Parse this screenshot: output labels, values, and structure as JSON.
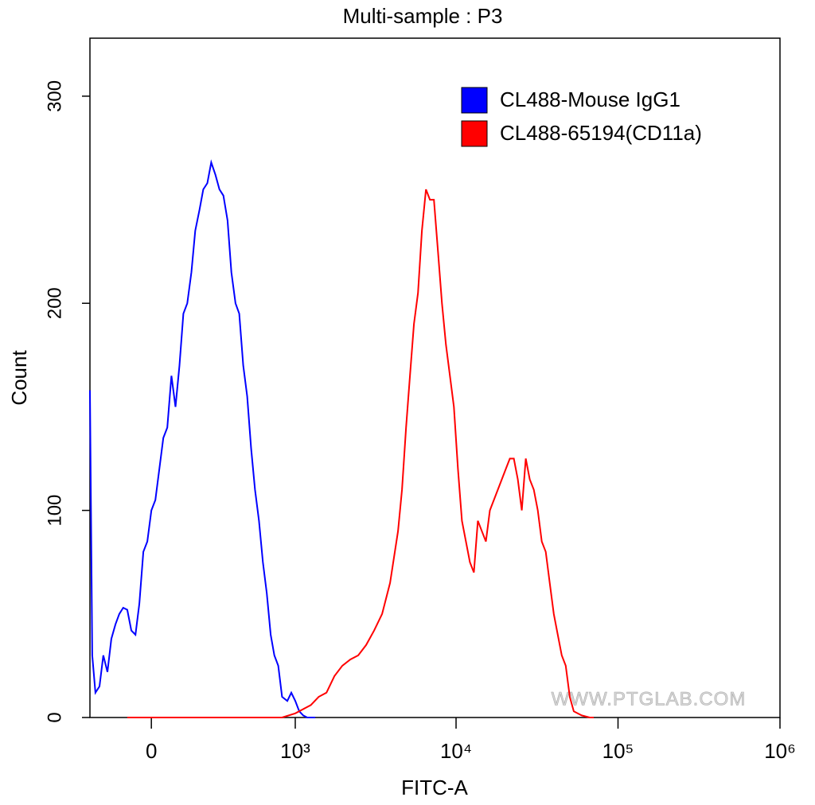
{
  "chart_data": {
    "type": "line",
    "title": "Multi-sample : P3",
    "x_label": "FITC-A",
    "y_label": "Count",
    "watermark": "WWW.PTGLAB.COM",
    "xscale": "biexponential",
    "xlim": [
      -260,
      1000000
    ],
    "ylim": [
      0,
      328
    ],
    "xticks": [
      0,
      {
        "value": 1000,
        "label": "10³"
      },
      {
        "value": 10000,
        "label": "10⁴"
      },
      {
        "value": 100000,
        "label": "10⁵"
      },
      {
        "value": 1000000,
        "label": "10⁶"
      }
    ],
    "yticks": [
      0,
      100,
      200,
      300
    ],
    "legend": "top-right",
    "series": [
      {
        "name": "CL488-Mouse IgG1",
        "color": "#0000ff",
        "x": [
          -260,
          -248,
          -232,
          -212,
          -194,
          -175,
          -158,
          -140,
          -124,
          -108,
          -92,
          -76,
          -60,
          -45,
          -30,
          -15,
          0,
          15,
          30,
          45,
          60,
          76,
          92,
          108,
          124,
          140,
          158,
          175,
          194,
          212,
          232,
          252,
          274,
          296,
          319,
          344,
          368,
          395,
          421,
          450,
          480,
          511,
          544,
          579,
          615,
          653,
          693,
          733,
          777,
          823,
          889,
          943,
          1000,
          1060,
          1124,
          1191,
          1339
        ],
        "values": [
          158,
          30,
          12,
          15,
          30,
          22,
          38,
          45,
          50,
          53,
          52,
          42,
          40,
          55,
          80,
          85,
          100,
          105,
          120,
          135,
          140,
          165,
          150,
          170,
          195,
          200,
          215,
          235,
          245,
          255,
          258,
          268,
          262,
          255,
          252,
          240,
          215,
          200,
          195,
          170,
          155,
          130,
          110,
          95,
          75,
          60,
          40,
          30,
          25,
          10,
          8,
          12,
          8,
          3,
          1,
          0,
          0
        ]
      },
      {
        "name": "CL488-65194(CD11a)",
        "color": "#ff0000",
        "x": [
          -92,
          232,
          615,
          823,
          1000,
          1120,
          1255,
          1406,
          1575,
          1765,
          1977,
          2215,
          2482,
          2780,
          3115,
          3490,
          3910,
          4380,
          4635,
          4908,
          5190,
          5495,
          5820,
          6155,
          6515,
          6900,
          7300,
          7730,
          8180,
          8660,
          9165,
          9700,
          10270,
          10870,
          11500,
          12170,
          12880,
          13640,
          14430,
          15280,
          16170,
          17110,
          18120,
          19170,
          20290,
          21480,
          22740,
          24060,
          25470,
          26960,
          28530,
          30200,
          31970,
          33830,
          35810,
          37900,
          40110,
          42460,
          44940,
          47560,
          50350,
          53290,
          59700,
          66880,
          70790
        ],
        "values": [
          0,
          0,
          0,
          0,
          2,
          4,
          6,
          10,
          12,
          20,
          25,
          28,
          30,
          35,
          42,
          50,
          65,
          90,
          110,
          140,
          165,
          190,
          205,
          235,
          255,
          250,
          250,
          225,
          200,
          180,
          165,
          150,
          120,
          95,
          85,
          75,
          70,
          95,
          90,
          85,
          100,
          105,
          110,
          115,
          120,
          125,
          125,
          115,
          100,
          125,
          115,
          110,
          100,
          85,
          80,
          65,
          50,
          40,
          30,
          25,
          10,
          3,
          1,
          0,
          0
        ]
      }
    ]
  }
}
